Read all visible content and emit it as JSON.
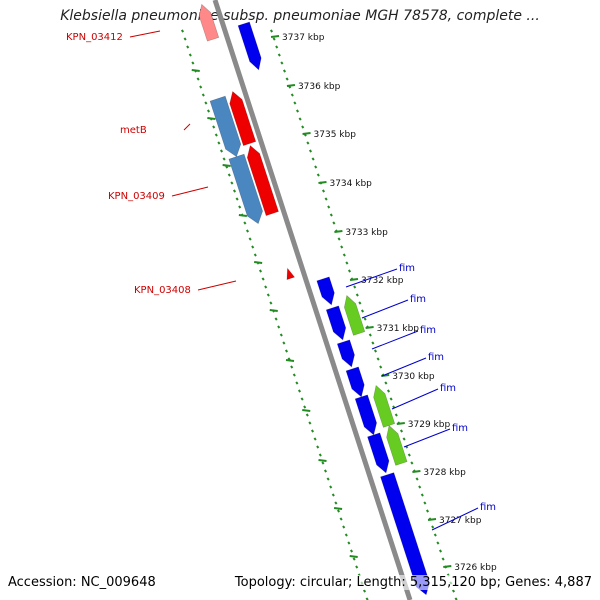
{
  "title": "Klebsiella pneumoniae subsp. pneumoniae MGH 78578, complete ...",
  "footer": {
    "accession": "Accession: NC_009648",
    "summary": "Topology: circular; Length: 5,315,120 bp; Genes: 4,887"
  },
  "colors": {
    "backbone": "#888888",
    "tick": "#228b22",
    "forward_gene": "#0000ee",
    "reverse_gene": "#ee0000",
    "cds_blue": "#4a86c0",
    "fim_green": "#66cc22",
    "label_red": "#cc0000",
    "label_blue": "#0000cc"
  },
  "tick_labels": [
    "3737 kbp",
    "3736 kbp",
    "3735 kbp",
    "3734 kbp",
    "3733 kbp",
    "3732 kbp",
    "3731 kbp",
    "3730 kbp",
    "3729 kbp",
    "3728 kbp",
    "3727 kbp",
    "3726 kbp"
  ],
  "left_labels": [
    "KPN_03412",
    "metB",
    "KPN_03409",
    "KPN_03408"
  ],
  "right_labels": [
    "fim",
    "fim",
    "fim",
    "fim",
    "fim",
    "fim",
    "fim"
  ]
}
